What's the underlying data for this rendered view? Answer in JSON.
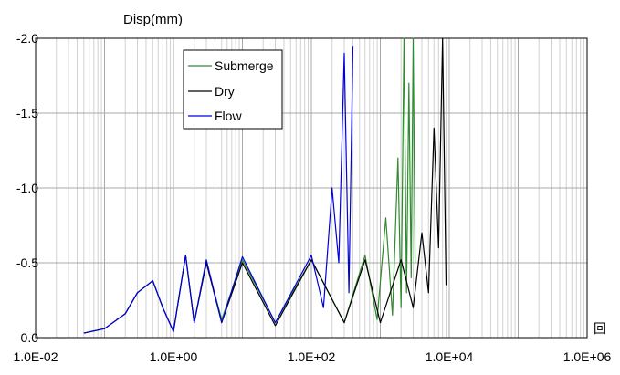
{
  "chart_data": {
    "type": "line",
    "title": "",
    "ylabel": "Disp(mm)",
    "xlabel": "回",
    "x_scale": "log",
    "xlim": [
      0.01,
      1000000
    ],
    "ylim": [
      0.0,
      -2.0
    ],
    "y_axis_inverted": true,
    "x_ticks": [
      "1.0E-02",
      "1.0E+00",
      "1.0E+02",
      "1.0E+04",
      "1.0E+06"
    ],
    "y_ticks": [
      "0.0",
      "-0.5",
      "-1.0",
      "-1.5",
      "-2.0"
    ],
    "grid": true,
    "legend_position": "top-left",
    "series": [
      {
        "name": "Submerge",
        "color": "#2e8b2e",
        "x": [
          0.05,
          0.1,
          0.2,
          0.3,
          0.5,
          0.7,
          1.0,
          1.5,
          2,
          3,
          5,
          10,
          30,
          100,
          300,
          600,
          900,
          1200,
          1500,
          1800,
          2000,
          2200,
          2400,
          2600,
          2800,
          3000,
          3200
        ],
        "y": [
          -0.03,
          -0.06,
          -0.16,
          -0.3,
          -0.38,
          -0.2,
          -0.04,
          -0.55,
          -0.1,
          -0.5,
          -0.12,
          -0.52,
          -0.1,
          -0.52,
          -0.1,
          -0.55,
          -0.12,
          -0.8,
          -0.15,
          -1.2,
          -0.2,
          -2.0,
          -0.3,
          -1.7,
          -0.4,
          -2.0,
          -0.5
        ]
      },
      {
        "name": "Dry",
        "color": "#000000",
        "x": [
          0.05,
          0.1,
          0.2,
          0.3,
          0.5,
          0.7,
          1.0,
          1.5,
          2,
          3,
          5,
          10,
          30,
          100,
          300,
          600,
          1000,
          2000,
          3000,
          4000,
          5000,
          6000,
          7000,
          8000,
          9000
        ],
        "y": [
          -0.03,
          -0.06,
          -0.16,
          -0.3,
          -0.38,
          -0.2,
          -0.04,
          -0.55,
          -0.1,
          -0.5,
          -0.1,
          -0.5,
          -0.08,
          -0.52,
          -0.1,
          -0.52,
          -0.1,
          -0.52,
          -0.2,
          -0.7,
          -0.3,
          -1.4,
          -0.6,
          -2.0,
          -0.35
        ]
      },
      {
        "name": "Flow",
        "color": "#0000dd",
        "x": [
          0.05,
          0.1,
          0.2,
          0.3,
          0.5,
          0.7,
          1.0,
          1.5,
          2,
          3,
          5,
          10,
          30,
          100,
          150,
          200,
          250,
          300,
          350,
          400
        ],
        "y": [
          -0.03,
          -0.06,
          -0.16,
          -0.3,
          -0.38,
          -0.2,
          -0.04,
          -0.55,
          -0.1,
          -0.52,
          -0.1,
          -0.54,
          -0.1,
          -0.55,
          -0.2,
          -1.0,
          -0.5,
          -1.9,
          -0.3,
          -1.95
        ]
      }
    ]
  }
}
